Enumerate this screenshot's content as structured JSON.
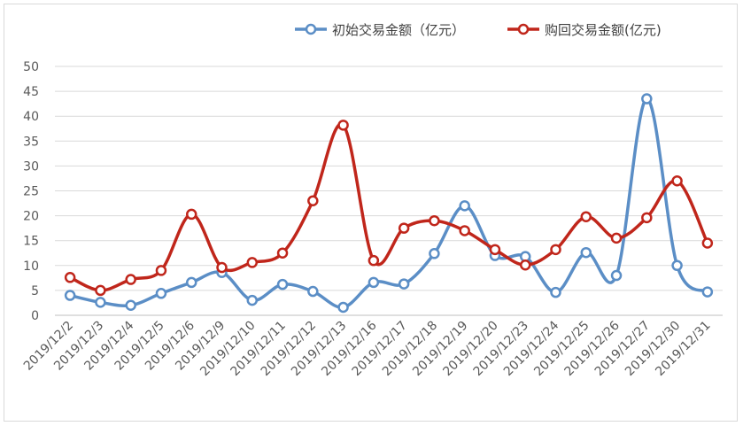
{
  "chart_data": {
    "type": "line",
    "title": "",
    "xlabel": "",
    "ylabel": "",
    "ylim": [
      0,
      50
    ],
    "yticks": [
      0,
      5,
      10,
      15,
      20,
      25,
      30,
      35,
      40,
      45,
      50
    ],
    "grid": "horizontal",
    "legend_position": "top",
    "smooth": true,
    "categories": [
      "2019/12/2",
      "2019/12/3",
      "2019/12/4",
      "2019/12/5",
      "2019/12/6",
      "2019/12/9",
      "2019/12/10",
      "2019/12/11",
      "2019/12/12",
      "2019/12/13",
      "2019/12/16",
      "2019/12/17",
      "2019/12/18",
      "2019/12/19",
      "2019/12/20",
      "2019/12/23",
      "2019/12/24",
      "2019/12/25",
      "2019/12/26",
      "2019/12/27",
      "2019/12/30",
      "2019/12/31"
    ],
    "series": [
      {
        "name": "初始交易金额（亿元）",
        "color": "#5b8ec6",
        "values": [
          4.0,
          2.6,
          2.0,
          4.4,
          6.6,
          8.6,
          3.0,
          6.2,
          4.8,
          1.6,
          6.6,
          6.3,
          12.4,
          22.0,
          12.0,
          11.8,
          4.6,
          12.6,
          8.0,
          43.5,
          10.0,
          4.7
        ]
      },
      {
        "name": "购回交易金额(亿元)",
        "color": "#c0261b",
        "values": [
          7.6,
          5.0,
          7.2,
          9.0,
          20.3,
          9.6,
          10.6,
          12.5,
          23.0,
          38.2,
          11.0,
          17.5,
          19.0,
          17.0,
          13.2,
          10.1,
          13.2,
          19.8,
          15.5,
          19.6,
          27.0,
          14.5
        ]
      }
    ]
  }
}
